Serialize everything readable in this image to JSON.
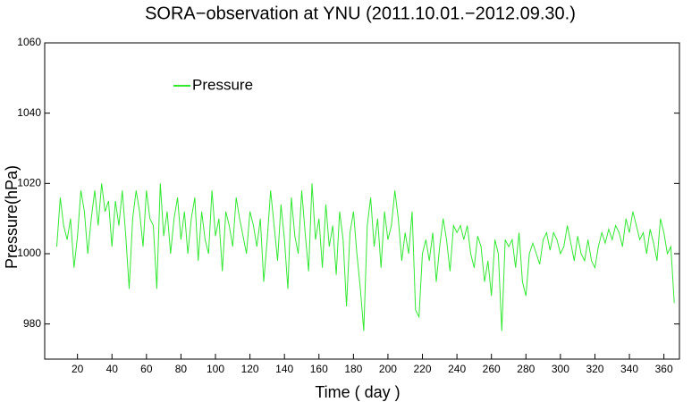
{
  "chart_data": {
    "type": "line",
    "title": "SORA−observation at YNU (2011.10.01.−2012.09.30.)",
    "xlabel": "Time ( day )",
    "ylabel": "Pressure(hPa)",
    "legend": "upper left",
    "xlim": [
      1,
      369
    ],
    "xticks": [
      20,
      40,
      60,
      80,
      100,
      120,
      140,
      160,
      180,
      200,
      220,
      240,
      260,
      280,
      300,
      320,
      340,
      360
    ],
    "ylim": [
      970,
      1060
    ],
    "yticks": [
      980,
      1000,
      1020,
      1040,
      1060
    ],
    "x": [
      8,
      10,
      12,
      14,
      16,
      18,
      20,
      22,
      24,
      26,
      28,
      30,
      32,
      34,
      36,
      38,
      40,
      42,
      44,
      46,
      48,
      50,
      52,
      54,
      56,
      58,
      60,
      62,
      64,
      66,
      68,
      70,
      72,
      74,
      76,
      78,
      80,
      82,
      84,
      86,
      88,
      90,
      92,
      94,
      96,
      98,
      100,
      102,
      104,
      106,
      108,
      110,
      112,
      114,
      116,
      118,
      120,
      122,
      124,
      126,
      128,
      130,
      132,
      134,
      136,
      138,
      140,
      142,
      144,
      146,
      148,
      150,
      152,
      154,
      156,
      158,
      160,
      162,
      164,
      166,
      168,
      170,
      172,
      174,
      176,
      178,
      180,
      182,
      184,
      186,
      188,
      190,
      192,
      194,
      196,
      198,
      200,
      202,
      204,
      206,
      208,
      210,
      212,
      214,
      216,
      218,
      220,
      222,
      224,
      226,
      228,
      230,
      232,
      234,
      236,
      238,
      240,
      242,
      244,
      246,
      248,
      250,
      252,
      254,
      256,
      258,
      260,
      262,
      264,
      266,
      268,
      270,
      272,
      274,
      276,
      278,
      280,
      282,
      284,
      286,
      288,
      290,
      292,
      294,
      296,
      298,
      300,
      302,
      304,
      306,
      308,
      310,
      312,
      314,
      316,
      318,
      320,
      322,
      324,
      326,
      328,
      330,
      332,
      334,
      336,
      338,
      340,
      342,
      344,
      346,
      348,
      350,
      352,
      354,
      356,
      358,
      360,
      362,
      364,
      366
    ],
    "series": [
      {
        "name": "Pressure",
        "color": "#33e833",
        "values": [
          1002,
          1016,
          1008,
          1004,
          1010,
          996,
          1005,
          1018,
          1012,
          1000,
          1010,
          1018,
          1008,
          1020,
          1012,
          1015,
          1002,
          1015,
          1008,
          1018,
          1005,
          990,
          1010,
          1018,
          1012,
          1002,
          1018,
          1010,
          1008,
          990,
          1020,
          1005,
          1012,
          1000,
          1010,
          1016,
          1004,
          1012,
          1000,
          1010,
          1016,
          998,
          1012,
          1004,
          1000,
          1018,
          1005,
          1010,
          995,
          1012,
          1008,
          1002,
          1016,
          1010,
          1005,
          1000,
          1012,
          1008,
          1002,
          1010,
          992,
          1004,
          1018,
          1008,
          998,
          1014,
          1004,
          990,
          1016,
          1005,
          1000,
          1018,
          1006,
          995,
          1020,
          1004,
          1010,
          996,
          1014,
          1002,
          1008,
          994,
          1012,
          1004,
          985,
          1006,
          1012,
          1000,
          990,
          978,
          1008,
          1016,
          1002,
          1010,
          996,
          1012,
          1004,
          1008,
          1018,
          1010,
          998,
          1006,
          1000,
          1012,
          984,
          982,
          1000,
          1004,
          998,
          1006,
          992,
          1002,
          1010,
          1004,
          995,
          1008,
          1006,
          1008,
          1004,
          1008,
          1000,
          996,
          1005,
          1002,
          992,
          998,
          988,
          1004,
          1000,
          978,
          1004,
          1002,
          1004,
          996,
          1006,
          992,
          988,
          1000,
          1003,
          1000,
          997,
          1004,
          1006,
          1001,
          1006,
          1004,
          1000,
          1002,
          1008,
          1003,
          998,
          1005,
          1000,
          998,
          1004,
          998,
          996,
          1002,
          1006,
          1003,
          1007,
          1004,
          1008,
          1006,
          1002,
          1010,
          1006,
          1012,
          1008,
          1004,
          1006,
          1000,
          1007,
          1003,
          998,
          1010,
          1006,
          1000,
          1002,
          986
        ]
      }
    ]
  }
}
